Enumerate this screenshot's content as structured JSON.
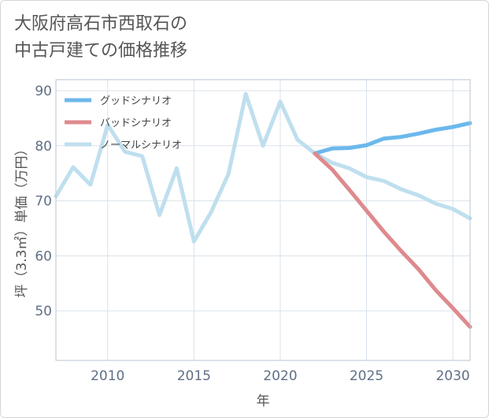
{
  "title": {
    "line1": "大阪府高石市西取石の",
    "line2": "中古戸建ての価格推移"
  },
  "chart_data": {
    "type": "line",
    "xlabel": "年",
    "ylabel": "坪（3.3㎡）単価（万円）",
    "xlim": [
      2007,
      2031
    ],
    "ylim": [
      41,
      92
    ],
    "xticks": [
      2010,
      2015,
      2020,
      2025,
      2030
    ],
    "yticks": [
      50,
      60,
      70,
      80,
      90
    ],
    "grid": true,
    "legend_position": "top-left",
    "series": [
      {
        "name": "グッドシナリオ",
        "color": "#6cb8ec",
        "x": [
          2022,
          2023,
          2024,
          2025,
          2026,
          2027,
          2028,
          2029,
          2030,
          2031
        ],
        "values": [
          78.6,
          79.5,
          79.6,
          80.1,
          81.3,
          81.6,
          82.2,
          82.9,
          83.4,
          84.1
        ]
      },
      {
        "name": "バッドシナリオ",
        "color": "#de8a8e",
        "x": [
          2022,
          2023,
          2024,
          2025,
          2026,
          2027,
          2028,
          2029,
          2030,
          2031
        ],
        "values": [
          78.6,
          75.7,
          72.0,
          68.2,
          64.4,
          60.9,
          57.6,
          53.8,
          50.5,
          47.1
        ]
      },
      {
        "name": "ノーマルシナリオ",
        "color": "#bfdfee",
        "x": [
          2007,
          2008,
          2009,
          2010,
          2011,
          2012,
          2013,
          2014,
          2015,
          2016,
          2017,
          2018,
          2019,
          2020,
          2021,
          2022,
          2023,
          2024,
          2025,
          2026,
          2027,
          2028,
          2029,
          2030,
          2031
        ],
        "values": [
          70.8,
          76.1,
          72.9,
          83.8,
          78.9,
          78.1,
          67.4,
          75.9,
          62.6,
          68.0,
          74.9,
          89.4,
          80.0,
          88.0,
          81.1,
          78.6,
          76.9,
          75.9,
          74.3,
          73.6,
          72.1,
          71.0,
          69.5,
          68.5,
          66.8
        ]
      }
    ]
  }
}
